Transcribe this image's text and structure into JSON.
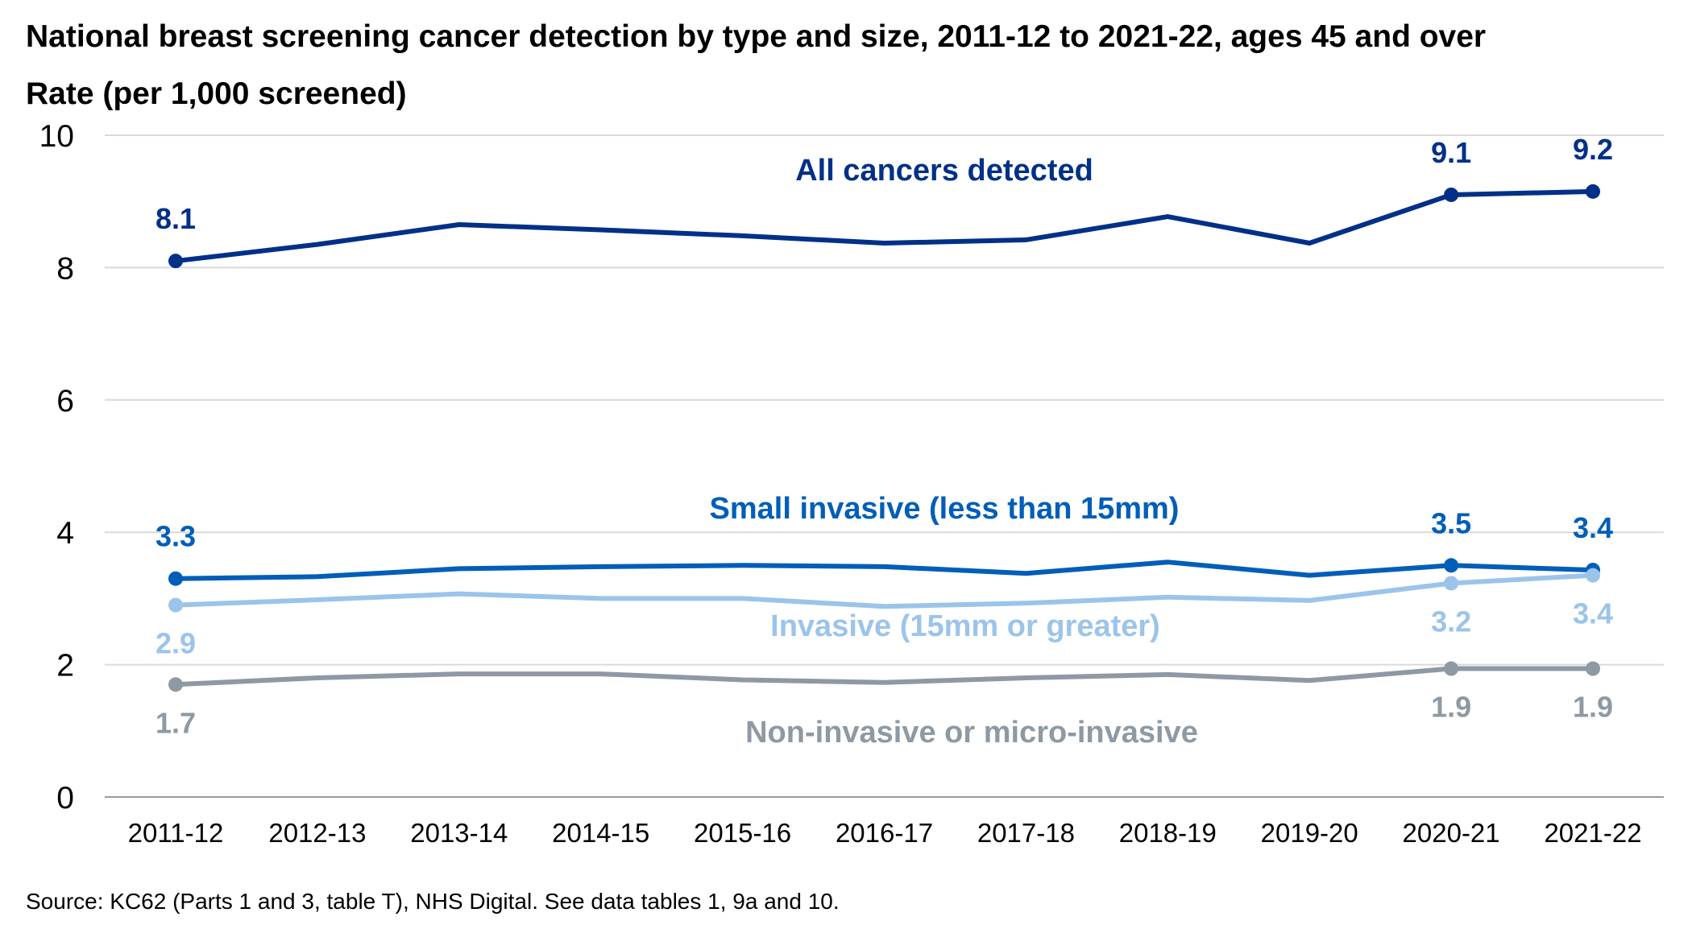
{
  "chart_data": {
    "type": "line",
    "title": "National breast screening cancer detection by type and size, 2011-12 to 2021-22, ages 45 and over",
    "ylabel": "Rate (per 1,000 screened)",
    "xlabel": "",
    "source": "Source: KC62 (Parts 1 and 3, table T), NHS Digital. See data tables 1, 9a and 10.",
    "ylim": [
      0,
      10
    ],
    "yticks": [
      "0",
      "2",
      "4",
      "6",
      "8",
      "10"
    ],
    "grid": true,
    "legend": "inline labels",
    "categories": [
      "2011-12",
      "2012-13",
      "2013-14",
      "2014-15",
      "2015-16",
      "2016-17",
      "2017-18",
      "2018-19",
      "2019-20",
      "2020-21",
      "2021-22"
    ],
    "series": [
      {
        "name": "All cancers detected",
        "color": "#003087",
        "values": [
          8.1,
          8.35,
          8.65,
          8.57,
          8.48,
          8.37,
          8.42,
          8.77,
          8.37,
          9.1,
          9.15
        ],
        "labels": [
          {
            "index": 0,
            "text": "8.1"
          },
          {
            "index": 9,
            "text": "9.1"
          },
          {
            "index": 10,
            "text": "9.2"
          }
        ]
      },
      {
        "name": "Small invasive (less than 15mm)",
        "color": "#005EB8",
        "values": [
          3.3,
          3.33,
          3.45,
          3.48,
          3.5,
          3.48,
          3.38,
          3.55,
          3.35,
          3.5,
          3.43
        ],
        "labels": [
          {
            "index": 0,
            "text": "3.3"
          },
          {
            "index": 9,
            "text": "3.5"
          },
          {
            "index": 10,
            "text": "3.4"
          }
        ]
      },
      {
        "name": "Invasive (15mm or greater)",
        "color": "#9CC4EA",
        "values": [
          2.9,
          2.98,
          3.07,
          3.0,
          3.0,
          2.88,
          2.93,
          3.02,
          2.97,
          3.23,
          3.35
        ],
        "labels": [
          {
            "index": 0,
            "text": "2.9"
          },
          {
            "index": 9,
            "text": "3.2"
          },
          {
            "index": 10,
            "text": "3.4"
          }
        ]
      },
      {
        "name": "Non-invasive or micro-invasive",
        "color": "#8E99A3",
        "values": [
          1.7,
          1.8,
          1.86,
          1.86,
          1.77,
          1.73,
          1.8,
          1.85,
          1.76,
          1.94,
          1.94
        ],
        "labels": [
          {
            "index": 0,
            "text": "1.7"
          },
          {
            "index": 9,
            "text": "1.9"
          },
          {
            "index": 10,
            "text": "1.9"
          }
        ]
      }
    ]
  }
}
